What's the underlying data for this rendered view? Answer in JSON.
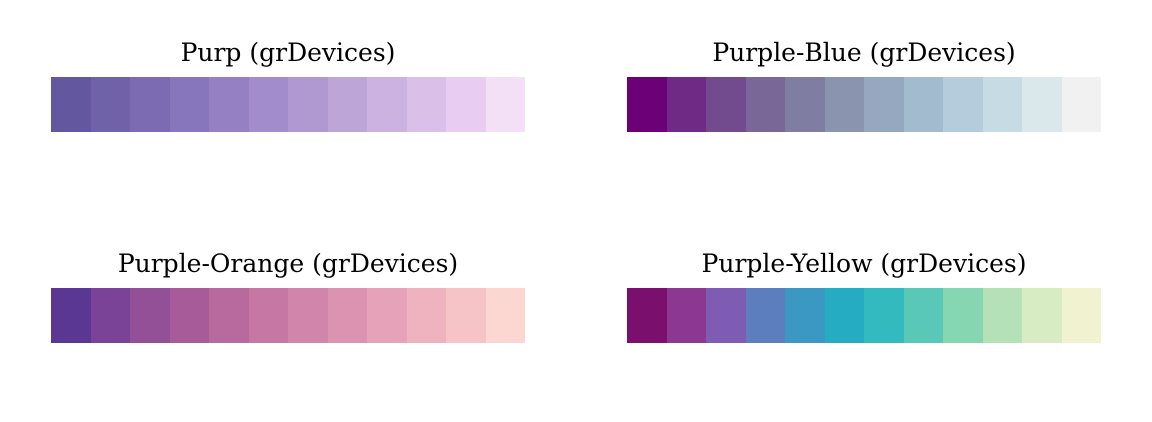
{
  "chart_data": [
    {
      "type": "heatmap",
      "title": "Purp (grDevices)",
      "colors": [
        "#63589F",
        "#6F62A8",
        "#7C6BB2",
        "#8876BC",
        "#9580C4",
        "#A38CCB",
        "#B098D1",
        "#BEA5D8",
        "#CCB2E0",
        "#DABFE9",
        "#E8CCF2",
        "#F3E0F7"
      ]
    },
    {
      "type": "heatmap",
      "title": "Purple-Blue (grDevices)",
      "colors": [
        "#6B0077",
        "#6F2A86",
        "#724A8E",
        "#786797",
        "#7F7DA1",
        "#8A94AF",
        "#95A8BF",
        "#A3BBCF",
        "#B4CCDB",
        "#C7DBE5",
        "#DAE7EB",
        "#F1F1F1"
      ]
    },
    {
      "type": "heatmap",
      "title": "Purple-Orange (grDevices)",
      "colors": [
        "#5B3794",
        "#7A4398",
        "#935097",
        "#A75C99",
        "#B86A9F",
        "#C677A4",
        "#D285AB",
        "#DC93B1",
        "#E6A2B8",
        "#EFB2BF",
        "#F6C3C7",
        "#FCD7D1"
      ]
    },
    {
      "type": "heatmap",
      "title": "Purple-Yellow (grDevices)",
      "colors": [
        "#7A0F6E",
        "#8C3893",
        "#7F5CB3",
        "#5C7EBF",
        "#3A98C3",
        "#25ACC2",
        "#33BABE",
        "#5AC8B6",
        "#86D6B2",
        "#B4E1B8",
        "#D8ECC4",
        "#F1F2D0"
      ]
    }
  ]
}
